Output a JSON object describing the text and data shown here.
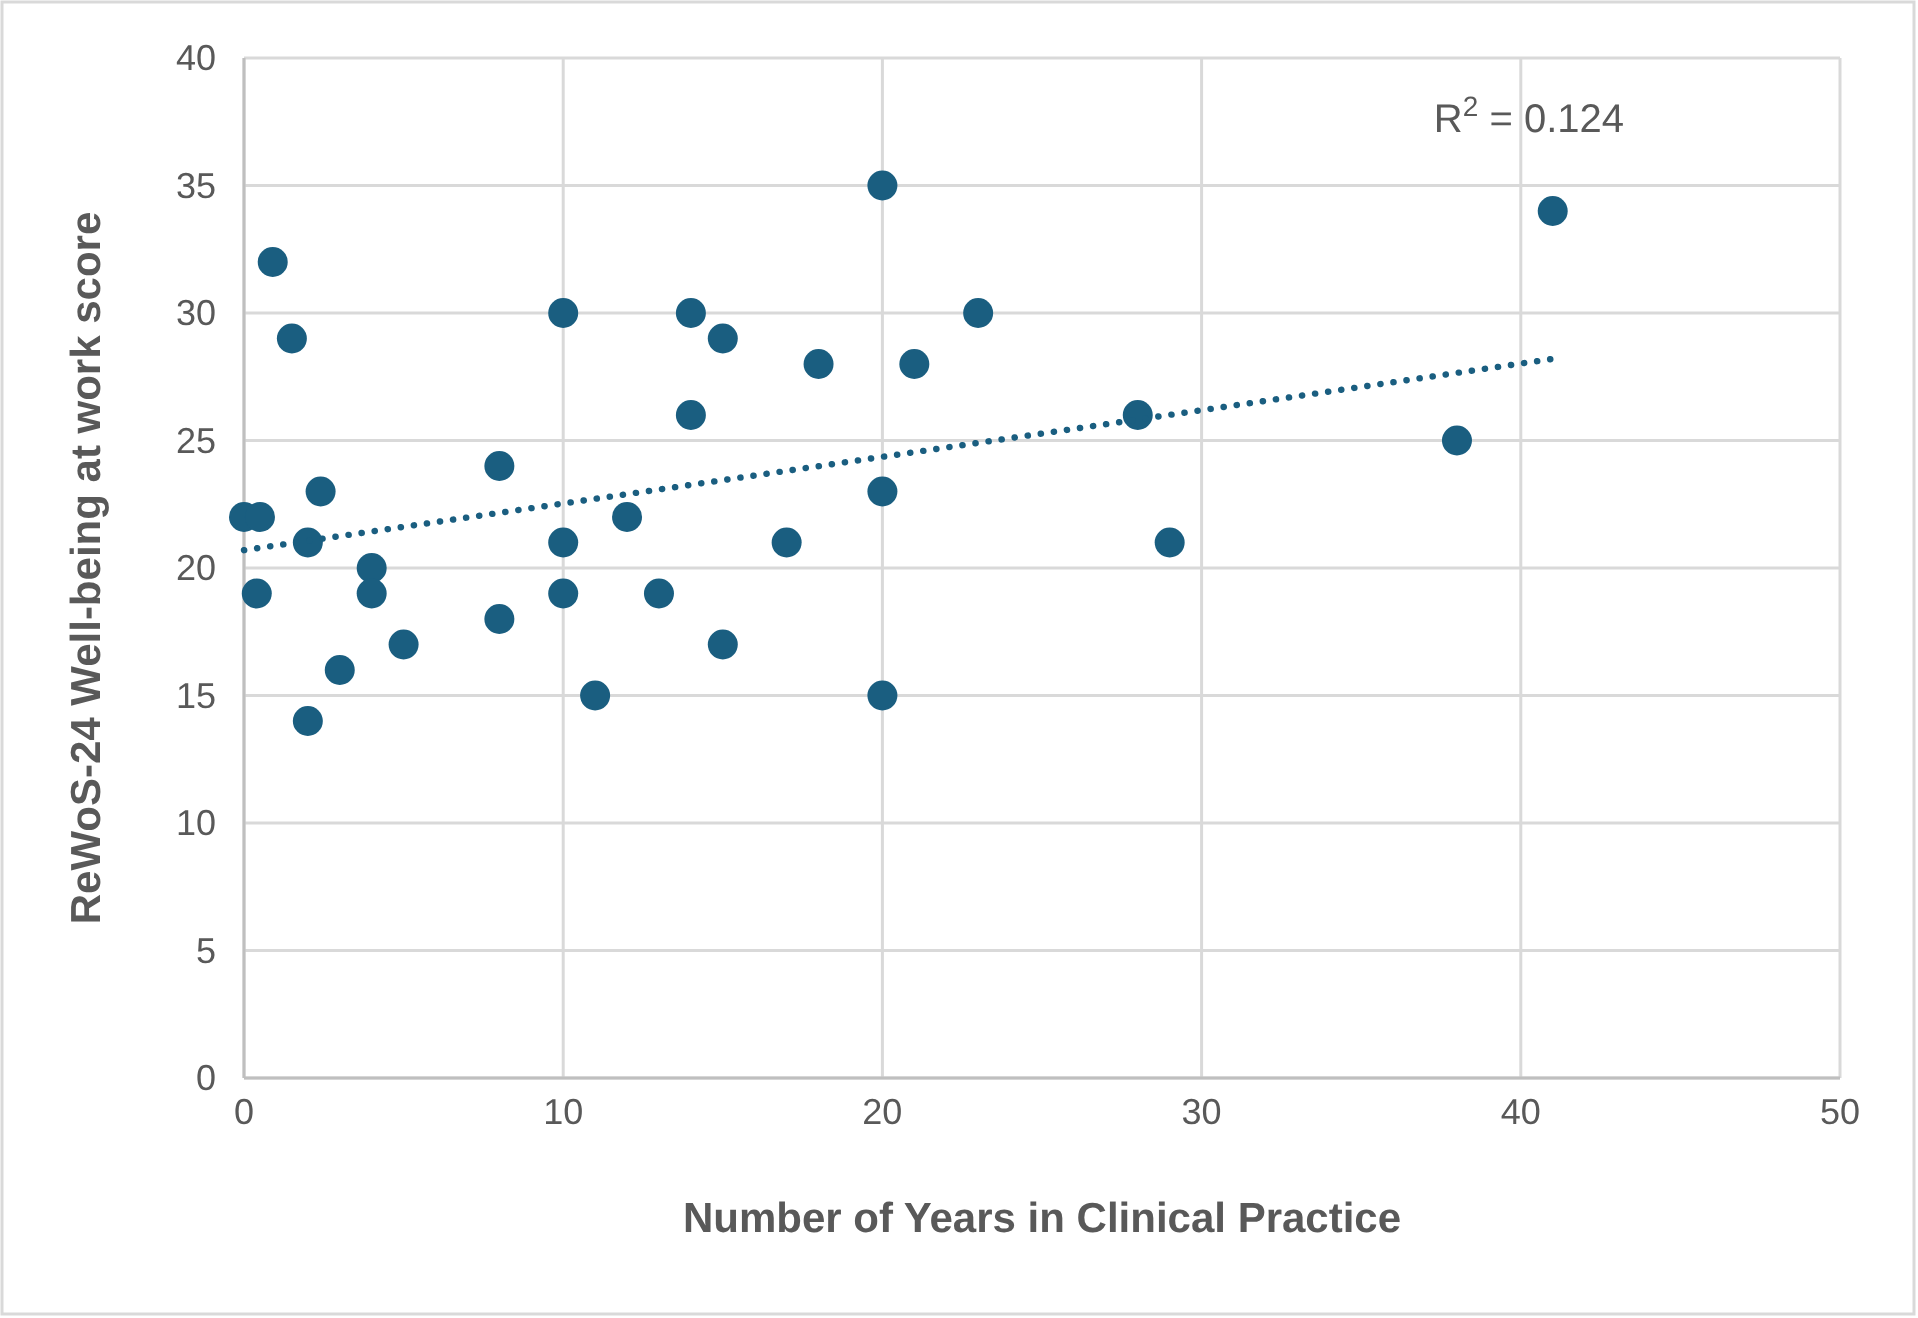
{
  "chart_data": {
    "type": "scatter",
    "xlabel": "Number of Years in Clinical Practice",
    "ylabel": "ReWoS-24 Well-being at work score",
    "xlim": [
      0,
      50
    ],
    "xticks": [
      0,
      10,
      20,
      30,
      40,
      50
    ],
    "ylim": [
      0,
      40
    ],
    "yticks": [
      0,
      5,
      10,
      15,
      20,
      25,
      30,
      35,
      40
    ],
    "grid": true,
    "series": [
      {
        "color": "#1a5e80",
        "marker": "circle",
        "x": [
          0,
          0.5,
          0.4,
          0.9,
          1.5,
          2,
          2.4,
          2,
          3,
          4,
          4,
          5,
          8,
          8,
          10,
          10,
          10,
          11,
          12,
          13,
          14,
          14,
          15,
          15,
          17,
          18,
          20,
          20,
          20,
          21,
          23,
          28,
          29,
          38,
          41
        ],
        "values": [
          22,
          22,
          19,
          32,
          29,
          21,
          23,
          14,
          16,
          20,
          19,
          17,
          24,
          18,
          30,
          21,
          19,
          15,
          22,
          19,
          30,
          26,
          29,
          17,
          21,
          28,
          35,
          23,
          15,
          28,
          30,
          26,
          21,
          25,
          34
        ]
      },
      {
        "type": "line",
        "color": "#1a5e80",
        "line_style": "dotted",
        "x": [
          0,
          41
        ],
        "values": [
          20.7,
          28.2
        ]
      }
    ],
    "annotations": [
      "R$^{2}$ = 0.124"
    ]
  }
}
